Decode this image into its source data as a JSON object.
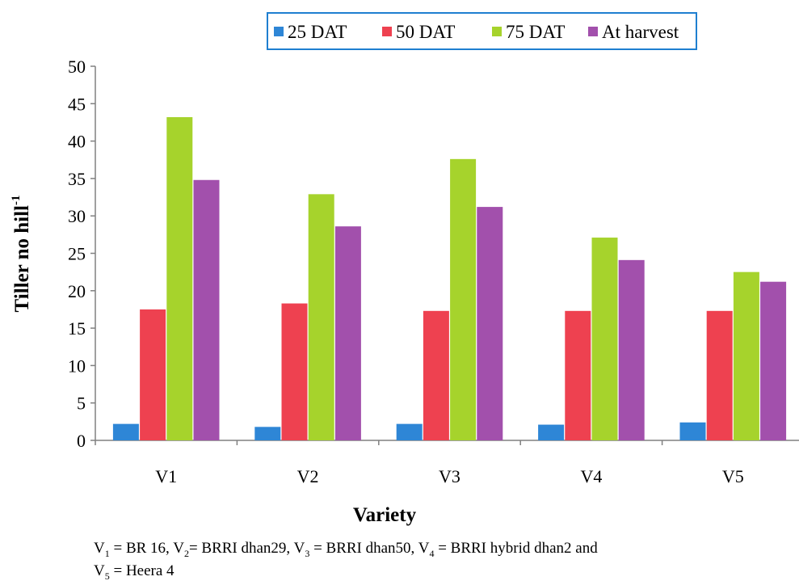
{
  "chart_data": {
    "type": "bar",
    "title": "",
    "xlabel": "Variety",
    "ylabel": "Tiller no hill",
    "ylabel_superscript": "-1",
    "ylim": [
      0,
      50
    ],
    "yticks": [
      0,
      5,
      10,
      15,
      20,
      25,
      30,
      35,
      40,
      45,
      50
    ],
    "categories": [
      "V1",
      "V2",
      "V3",
      "V4",
      "V5"
    ],
    "grid": false,
    "legend_position": "top",
    "series": [
      {
        "name": "25 DAT",
        "color": "#2e86d6",
        "values": [
          2.2,
          1.8,
          2.2,
          2.1,
          2.4
        ]
      },
      {
        "name": "50 DAT",
        "color": "#ee4150",
        "values": [
          17.5,
          18.3,
          17.3,
          17.3,
          17.3
        ]
      },
      {
        "name": "75 DAT",
        "color": "#a6d32c",
        "values": [
          43.2,
          32.9,
          37.6,
          27.1,
          22.5
        ]
      },
      {
        "name": "At harvest",
        "color": "#a250ac",
        "values": [
          34.8,
          28.6,
          31.2,
          24.1,
          21.2
        ]
      }
    ]
  },
  "footnote": {
    "parts": [
      {
        "t": "V"
      },
      {
        "sub": "1"
      },
      {
        "t": " = BR 16, V"
      },
      {
        "sub": "2"
      },
      {
        "t": "= BRRI dhan29, V"
      },
      {
        "sub": "3"
      },
      {
        "t": " = BRRI dhan50, V"
      },
      {
        "sub": "4"
      },
      {
        "t": " = BRRI hybrid dhan2 and "
      },
      {
        "br": true
      },
      {
        "t": "V"
      },
      {
        "sub": "5"
      },
      {
        "t": " = Heera 4"
      }
    ]
  }
}
